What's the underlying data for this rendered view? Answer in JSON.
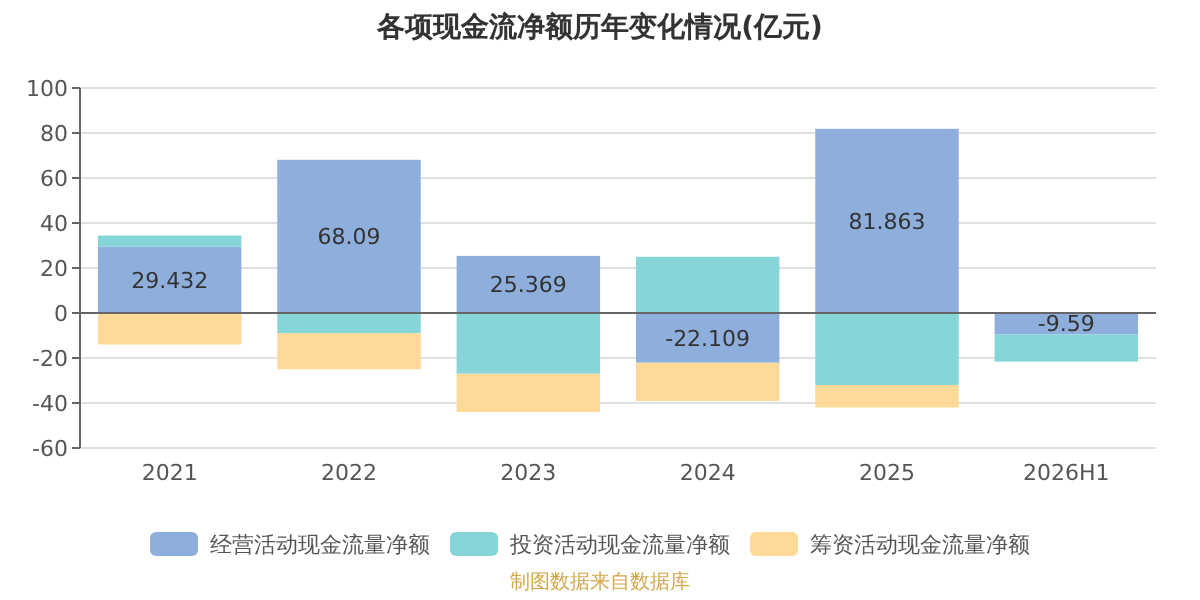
{
  "chart_data": {
    "type": "bar",
    "title": "各项现金流净额历年变化情况(亿元)",
    "categories": [
      "2021",
      "2022",
      "2023",
      "2024",
      "2025",
      "2026H1"
    ],
    "stacked": true,
    "series": [
      {
        "name": "经营活动现金流量净额",
        "color": "#8eaedb",
        "values": [
          29.432,
          68.09,
          25.369,
          -22.109,
          81.863,
          -9.59
        ],
        "value_labels": [
          "29.432",
          "68.09",
          "25.369",
          "-22.109",
          "81.863",
          "-9.59"
        ]
      },
      {
        "name": "投资活动现金流量净额",
        "color": "#86d5d9",
        "values": [
          5,
          -9,
          -27,
          25,
          -32,
          -12
        ]
      },
      {
        "name": "筹资活动现金流量净额",
        "color": "#fed997",
        "values": [
          -14,
          -16,
          -17,
          -17,
          -10,
          null
        ]
      }
    ],
    "ylim": [
      -60,
      100
    ],
    "yticks": [
      -60,
      -40,
      -20,
      0,
      20,
      40,
      60,
      80,
      100
    ],
    "grid": "y",
    "legend": "bottom",
    "annotations": [
      "制图数据来自数据库"
    ]
  }
}
